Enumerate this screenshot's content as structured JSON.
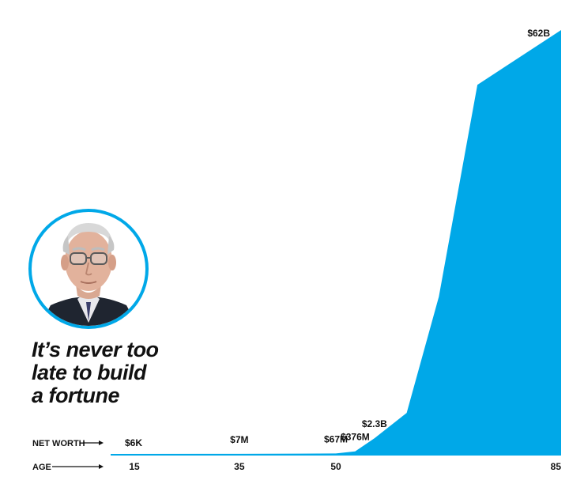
{
  "headline": "It’s never too\nlate to build\na fortune",
  "colors": {
    "area": "#00a8e8",
    "text": "#111111",
    "ring": "#00a8e8"
  },
  "labels": {
    "net_worth": "NET WORTH",
    "age": "AGE"
  },
  "icons": {
    "portrait": "elderly-man-with-glasses-portrait"
  },
  "chart_data": {
    "type": "area",
    "xlabel": "AGE",
    "ylabel": "NET WORTH",
    "x_ticks": [
      15,
      35,
      50,
      85
    ],
    "xlim": [
      15,
      85
    ],
    "points": [
      {
        "age": 15,
        "net_worth": 6000
      },
      {
        "age": 35,
        "net_worth": 7000000
      },
      {
        "age": 50,
        "net_worth": 67000000
      },
      {
        "age": 53,
        "net_worth": 376000000
      },
      {
        "age": 56,
        "net_worth": 2300000000
      },
      {
        "age": 61,
        "net_worth": 6000000000
      },
      {
        "age": 66,
        "net_worth": 23000000000
      },
      {
        "age": 72,
        "net_worth": 54000000000
      },
      {
        "age": 85,
        "net_worth": 62000000000
      }
    ],
    "value_labels": [
      {
        "text": "$6K",
        "age": 15
      },
      {
        "text": "$7M",
        "age": 35
      },
      {
        "text": "$67M",
        "age": 50
      },
      {
        "text": "$376M",
        "age": 53
      },
      {
        "text": "$2.3B",
        "age": 56
      },
      {
        "text": "$62B",
        "age": 85
      }
    ],
    "legend": "none",
    "grid": false
  }
}
